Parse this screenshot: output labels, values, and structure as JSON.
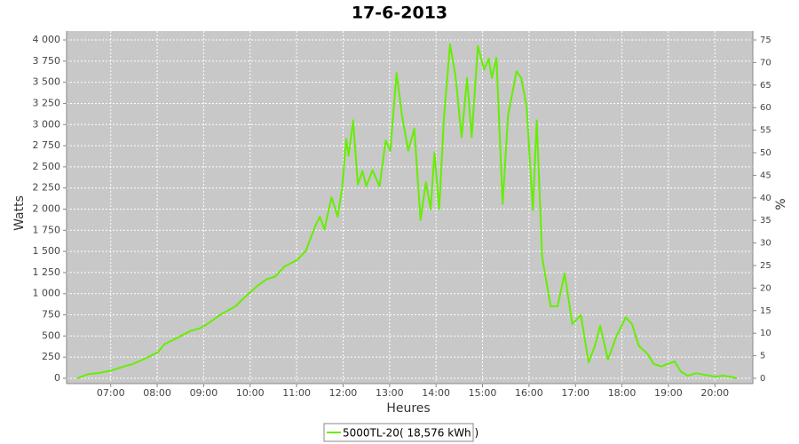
{
  "chart_data": {
    "type": "line",
    "title": "17-6-2013",
    "x_label": "Heures",
    "y_label": "Watts",
    "y2_label": "%",
    "grid": true,
    "legend": "bottom",
    "plot_background": "#c8c8c8",
    "x": [
      "06:17",
      "06:31",
      "06:43",
      "07:00",
      "07:17",
      "07:29",
      "07:46",
      "08:01",
      "08:09",
      "08:26",
      "08:43",
      "08:55",
      "09:06",
      "09:23",
      "09:41",
      "09:52",
      "10:09",
      "10:21",
      "10:32",
      "10:44",
      "11:01",
      "11:12",
      "11:24",
      "11:30",
      "11:36",
      "11:45",
      "11:53",
      "11:59",
      "12:04",
      "12:07",
      "12:13",
      "12:19",
      "12:25",
      "12:30",
      "12:38",
      "12:47",
      "12:55",
      "13:01",
      "13:09",
      "13:16",
      "13:24",
      "13:32",
      "13:40",
      "13:47",
      "13:53",
      "13:58",
      "14:04",
      "14:10",
      "14:18",
      "14:25",
      "14:33",
      "14:40",
      "14:46",
      "14:54",
      "15:02",
      "15:08",
      "15:12",
      "15:18",
      "15:26",
      "15:33",
      "15:44",
      "15:50",
      "15:57",
      "16:05",
      "16:10",
      "16:17",
      "16:28",
      "16:37",
      "16:46",
      "16:56",
      "17:07",
      "17:17",
      "17:25",
      "17:32",
      "17:42",
      "17:53",
      "18:05",
      "18:13",
      "18:22",
      "18:33",
      "18:41",
      "18:51",
      "18:59",
      "19:08",
      "19:16",
      "19:25",
      "19:36",
      "19:47",
      "20:00",
      "20:11",
      "20:19",
      "20:28"
    ],
    "series": [
      {
        "name": "5000TL-20( 18,576 kWh )",
        "color": "#66ee00",
        "values": [
          0,
          50,
          60,
          90,
          140,
          170,
          240,
          310,
          400,
          480,
          560,
          590,
          650,
          760,
          850,
          950,
          1090,
          1170,
          1200,
          1320,
          1400,
          1510,
          1800,
          1910,
          1760,
          2140,
          1910,
          2270,
          2830,
          2630,
          3050,
          2290,
          2450,
          2270,
          2460,
          2270,
          2810,
          2690,
          3610,
          3110,
          2690,
          2950,
          1870,
          2320,
          2000,
          2670,
          2000,
          3050,
          3950,
          3580,
          2850,
          3550,
          2850,
          3930,
          3650,
          3780,
          3550,
          3790,
          2060,
          3110,
          3630,
          3550,
          3210,
          1990,
          3050,
          1430,
          850,
          850,
          1240,
          640,
          750,
          190,
          380,
          620,
          220,
          500,
          720,
          640,
          380,
          290,
          170,
          140,
          170,
          200,
          80,
          30,
          60,
          40,
          20,
          30,
          20,
          0
        ]
      }
    ],
    "xlim": [
      "06:03",
      "20:49"
    ],
    "xticks": [
      "07:00",
      "08:00",
      "09:00",
      "10:00",
      "11:00",
      "12:00",
      "13:00",
      "14:00",
      "15:00",
      "16:00",
      "17:00",
      "18:00",
      "19:00",
      "20:00"
    ],
    "ylim": [
      -63,
      4105
    ],
    "yticks": [
      0,
      250,
      500,
      750,
      {
        "value": 1000,
        "label": "1 000"
      },
      {
        "value": 1250,
        "label": "1 250"
      },
      {
        "value": 1500,
        "label": "1 500"
      },
      {
        "value": 1750,
        "label": "1 750"
      },
      {
        "value": 2000,
        "label": "2 000"
      },
      {
        "value": 2250,
        "label": "2 250"
      },
      {
        "value": 2500,
        "label": "2 500"
      },
      {
        "value": 2750,
        "label": "2 750"
      },
      {
        "value": 3000,
        "label": "3 000"
      },
      {
        "value": 3250,
        "label": "3 250"
      },
      {
        "value": 3500,
        "label": "3 500"
      },
      {
        "value": 3750,
        "label": "3 750"
      },
      {
        "value": 4000,
        "label": "4 000"
      }
    ],
    "y2lim": [
      -1.18,
      76.97
    ],
    "y2ticks": [
      0,
      5,
      10,
      15,
      20,
      25,
      30,
      35,
      40,
      45,
      50,
      55,
      60,
      65,
      70,
      75
    ]
  }
}
